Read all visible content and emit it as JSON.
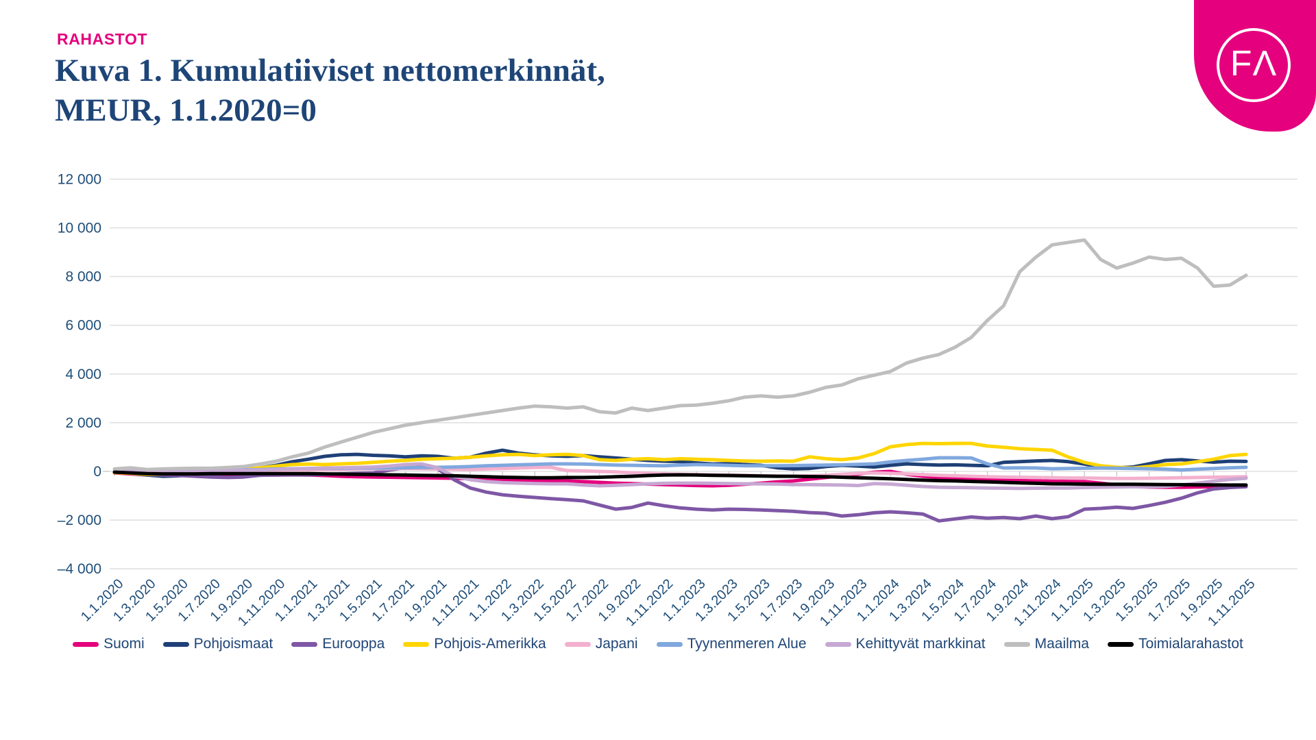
{
  "header": {
    "kicker": "RAHASTOT",
    "title_line1": "Kuva 1. Kumulatiiviset nettomerkinnät,",
    "title_line2": "MEUR, 1.1.2020=0"
  },
  "logo": {
    "monogram": "FΛ",
    "bg_color": "#E5007D"
  },
  "colors": {
    "accent_pink": "#E4007C",
    "title_navy": "#1E4577",
    "axis_text": "#1F4E79",
    "gridline": "#E0E0E0",
    "tick": "#C9C9C9"
  },
  "chart_data": {
    "type": "line",
    "title": "Kumulatiiviset nettomerkinnät, MEUR, 1.1.2020=0",
    "xlabel": "",
    "ylabel": "MEUR",
    "ylim": [
      -4000,
      12000
    ],
    "ytick_step": 2000,
    "grid": "horizontal",
    "legend_position": "bottom",
    "ytick_labels": [
      "12 000",
      "10 000",
      "8 000",
      "6 000",
      "4 000",
      "2 000",
      "0",
      "–2 000",
      "–4 000"
    ],
    "x_labels": [
      "1.1.2020",
      "1.3.2020",
      "1.5.2020",
      "1.7.2020",
      "1.9.2020",
      "1.11.2020",
      "1.1.2021",
      "1.3.2021",
      "1.5.2021",
      "1.7.2021",
      "1.9.2021",
      "1.11.2021",
      "1.1.2022",
      "1.3.2022",
      "1.5.2022",
      "1.7.2022",
      "1.9.2022",
      "1.11.2022",
      "1.1.2023",
      "1.3.2023",
      "1.5.2023",
      "1.7.2023",
      "1.9.2023",
      "1.11.2023",
      "1.1.2024",
      "1.3.2024",
      "1.5.2024",
      "1.7.2024",
      "1.9.2024",
      "1.11.2024",
      "1.1.2025",
      "1.3.2025",
      "1.5.2025",
      "1.7.2025",
      "1.9.2025",
      "1.11.2025"
    ],
    "points_per_label": 2,
    "series": [
      {
        "name": "Suomi",
        "color": "#E4007C",
        "width": 5,
        "values": [
          -60,
          -100,
          -150,
          -170,
          -160,
          -150,
          -140,
          -150,
          -160,
          -150,
          -150,
          -140,
          -150,
          -170,
          -200,
          -220,
          -230,
          -240,
          -250,
          -260,
          -270,
          -280,
          -300,
          -320,
          -340,
          -360,
          -380,
          -390,
          -390,
          -420,
          -450,
          -480,
          -500,
          -520,
          -540,
          -560,
          -580,
          -590,
          -570,
          -530,
          -480,
          -430,
          -390,
          -320,
          -250,
          -180,
          -110,
          -30,
          0,
          -120,
          -200,
          -250,
          -280,
          -300,
          -330,
          -350,
          -370,
          -390,
          -400,
          -410,
          -420,
          -480,
          -560,
          -620,
          -640,
          -650,
          -650,
          -640,
          -630,
          -620,
          -620
        ]
      },
      {
        "name": "Pohjoismaat",
        "color": "#1F4077",
        "width": 5,
        "values": [
          -30,
          -80,
          -150,
          -200,
          -180,
          -130,
          -100,
          -60,
          0,
          150,
          250,
          400,
          500,
          620,
          680,
          700,
          660,
          640,
          600,
          640,
          620,
          540,
          580,
          750,
          870,
          750,
          680,
          640,
          620,
          650,
          600,
          550,
          500,
          450,
          420,
          400,
          350,
          300,
          320,
          280,
          250,
          150,
          100,
          120,
          200,
          250,
          220,
          180,
          250,
          310,
          280,
          260,
          270,
          250,
          230,
          370,
          400,
          430,
          450,
          400,
          300,
          180,
          150,
          180,
          310,
          450,
          480,
          430,
          380,
          420,
          410
        ]
      },
      {
        "name": "Eurooppa",
        "color": "#7E57A5",
        "width": 5,
        "values": [
          -30,
          -60,
          -120,
          -150,
          -170,
          -200,
          -230,
          -250,
          -230,
          -160,
          -150,
          -140,
          -150,
          -120,
          -100,
          -80,
          -60,
          50,
          150,
          220,
          100,
          -340,
          -680,
          -850,
          -960,
          -1020,
          -1070,
          -1120,
          -1160,
          -1210,
          -1380,
          -1550,
          -1480,
          -1300,
          -1410,
          -1500,
          -1550,
          -1580,
          -1550,
          -1560,
          -1580,
          -1610,
          -1640,
          -1690,
          -1720,
          -1830,
          -1780,
          -1700,
          -1660,
          -1700,
          -1750,
          -2030,
          -1950,
          -1870,
          -1920,
          -1890,
          -1940,
          -1830,
          -1940,
          -1860,
          -1550,
          -1520,
          -1470,
          -1520,
          -1400,
          -1270,
          -1100,
          -880,
          -720,
          -660,
          -630
        ]
      },
      {
        "name": "Pohjois-Amerikka",
        "color": "#FFD500",
        "width": 5,
        "values": [
          -50,
          -80,
          -120,
          -100,
          -60,
          -20,
          0,
          30,
          80,
          150,
          220,
          280,
          300,
          280,
          310,
          330,
          370,
          420,
          450,
          500,
          520,
          540,
          580,
          640,
          680,
          700,
          650,
          680,
          700,
          650,
          480,
          450,
          500,
          520,
          480,
          520,
          500,
          480,
          450,
          430,
          420,
          430,
          420,
          600,
          520,
          480,
          550,
          730,
          1010,
          1100,
          1150,
          1140,
          1150,
          1150,
          1040,
          990,
          930,
          900,
          870,
          590,
          370,
          230,
          170,
          140,
          200,
          280,
          310,
          400,
          500,
          650,
          700
        ]
      },
      {
        "name": "Japani",
        "color": "#F3B0CE",
        "width": 5,
        "values": [
          0,
          10,
          20,
          30,
          30,
          30,
          30,
          40,
          40,
          40,
          50,
          60,
          60,
          70,
          80,
          90,
          100,
          110,
          120,
          110,
          100,
          90,
          80,
          100,
          120,
          140,
          160,
          170,
          30,
          20,
          0,
          -20,
          -60,
          -80,
          -100,
          -120,
          -130,
          -140,
          -150,
          -160,
          -180,
          -190,
          -200,
          -180,
          -160,
          -120,
          -80,
          -60,
          -80,
          -100,
          -130,
          -160,
          -180,
          -200,
          -220,
          -230,
          -240,
          -250,
          -260,
          -270,
          -270,
          -280,
          -290,
          -290,
          -280,
          -270,
          -260,
          -250,
          -240,
          -230,
          -220
        ]
      },
      {
        "name": "Tyynenmeren Alue",
        "color": "#7FA8DE",
        "width": 5,
        "values": [
          0,
          10,
          20,
          30,
          40,
          50,
          50,
          60,
          70,
          80,
          100,
          110,
          120,
          130,
          130,
          140,
          140,
          140,
          150,
          160,
          170,
          180,
          200,
          230,
          250,
          270,
          290,
          310,
          310,
          300,
          280,
          260,
          250,
          240,
          230,
          260,
          280,
          270,
          250,
          230,
          230,
          230,
          240,
          250,
          260,
          270,
          290,
          310,
          390,
          450,
          500,
          560,
          560,
          550,
          310,
          140,
          150,
          140,
          110,
          120,
          130,
          140,
          130,
          120,
          110,
          90,
          60,
          90,
          120,
          150,
          170
        ]
      },
      {
        "name": "Kehittyvät markkinat",
        "color": "#C6A8D3",
        "width": 5,
        "values": [
          0,
          10,
          20,
          20,
          30,
          30,
          40,
          40,
          50,
          60,
          80,
          100,
          120,
          140,
          150,
          160,
          180,
          220,
          280,
          310,
          150,
          -200,
          -340,
          -420,
          -460,
          -480,
          -500,
          -510,
          -510,
          -560,
          -590,
          -570,
          -540,
          -510,
          -490,
          -480,
          -480,
          -490,
          -500,
          -510,
          -510,
          -520,
          -540,
          -540,
          -550,
          -560,
          -580,
          -500,
          -520,
          -570,
          -620,
          -650,
          -660,
          -670,
          -680,
          -690,
          -700,
          -690,
          -680,
          -680,
          -660,
          -650,
          -640,
          -630,
          -630,
          -620,
          -560,
          -480,
          -400,
          -330,
          -280
        ]
      },
      {
        "name": "Maailma",
        "color": "#BEBEBE",
        "width": 5,
        "values": [
          100,
          150,
          80,
          100,
          120,
          130,
          130,
          160,
          200,
          300,
          420,
          600,
          750,
          1000,
          1200,
          1400,
          1600,
          1750,
          1900,
          2000,
          2100,
          2200,
          2300,
          2400,
          2500,
          2600,
          2680,
          2650,
          2600,
          2650,
          2450,
          2400,
          2600,
          2500,
          2600,
          2700,
          2720,
          2800,
          2900,
          3050,
          3100,
          3050,
          3100,
          3250,
          3450,
          3550,
          3800,
          3950,
          4100,
          4450,
          4650,
          4800,
          5100,
          5500,
          6200,
          6800,
          8200,
          8800,
          9300,
          9400,
          9500,
          8700,
          8350,
          8550,
          8800,
          8700,
          8750,
          8350,
          7600,
          7650,
          8050
        ]
      },
      {
        "name": "Toimialarahastot",
        "color": "#000000",
        "width": 5,
        "values": [
          -30,
          -60,
          -90,
          -100,
          -100,
          -100,
          -90,
          -90,
          -90,
          -90,
          -90,
          -90,
          -90,
          -100,
          -110,
          -120,
          -130,
          -140,
          -150,
          -160,
          -170,
          -180,
          -200,
          -220,
          -240,
          -250,
          -260,
          -260,
          -250,
          -250,
          -240,
          -220,
          -200,
          -170,
          -150,
          -140,
          -150,
          -160,
          -170,
          -180,
          -190,
          -200,
          -200,
          -210,
          -220,
          -240,
          -260,
          -280,
          -300,
          -330,
          -360,
          -380,
          -390,
          -410,
          -430,
          -450,
          -470,
          -490,
          -510,
          -515,
          -520,
          -525,
          -530,
          -530,
          -535,
          -540,
          -545,
          -550,
          -555,
          -560,
          -560
        ]
      }
    ]
  }
}
